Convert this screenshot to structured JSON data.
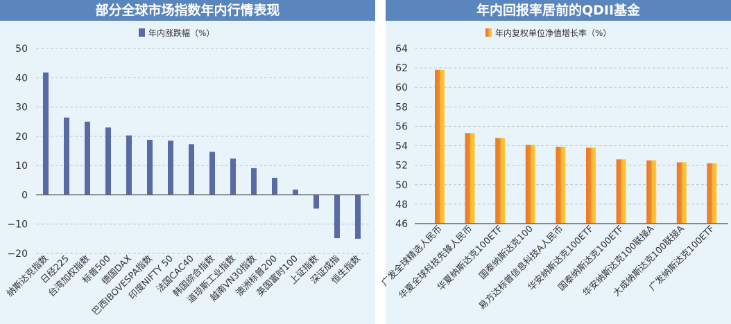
{
  "chart_data": [
    {
      "type": "bar",
      "title": "部分全球市场指数年内行情表现",
      "legend": "年内涨跌幅（%）",
      "legend_position": "top-center",
      "color": "#5a6aa6",
      "ylim": [
        -20,
        50
      ],
      "yticks": [
        -20,
        -10,
        0,
        10,
        20,
        30,
        40,
        50
      ],
      "grid": true,
      "categories": [
        "纳斯达克指数",
        "日经225",
        "台湾加权指数",
        "标普500",
        "德国DAX",
        "巴西IBOVESPA指数",
        "印度NIFTY 50",
        "法国CAC40",
        "韩国综合指数",
        "道琼斯工业指数",
        "越南VN30指数",
        "澳洲标普200",
        "英国富时100",
        "上证指数",
        "深证成指",
        "恒生指数"
      ],
      "values": [
        41.8,
        26.4,
        25.0,
        23.0,
        20.3,
        18.8,
        18.5,
        17.3,
        14.7,
        12.4,
        9.1,
        5.8,
        1.8,
        -4.7,
        -14.8,
        -15.0
      ]
    },
    {
      "type": "bar",
      "title": "年内回报率居前的QDII基金",
      "legend": "年内复权单位净值增长率（%）",
      "legend_position": "top-center",
      "color": "#e9782a",
      "ylim": [
        46,
        64
      ],
      "yticks": [
        46,
        48,
        50,
        52,
        54,
        56,
        58,
        60,
        62,
        64
      ],
      "grid": true,
      "categories": [
        "广发全球精选人民币",
        "华夏全球科技先锋人民币",
        "华夏纳斯达克100ETF",
        "国泰纳斯达克100",
        "易方达标普信息科技A人民币",
        "华安纳斯达克100ETF",
        "国泰纳斯达克100ETF",
        "华安纳斯达克100联接A",
        "大成纳斯达克100联接A",
        "广发纳斯达克100ETF"
      ],
      "values": [
        61.8,
        55.3,
        54.8,
        54.1,
        53.9,
        53.8,
        52.6,
        52.5,
        52.3,
        52.2
      ]
    }
  ]
}
